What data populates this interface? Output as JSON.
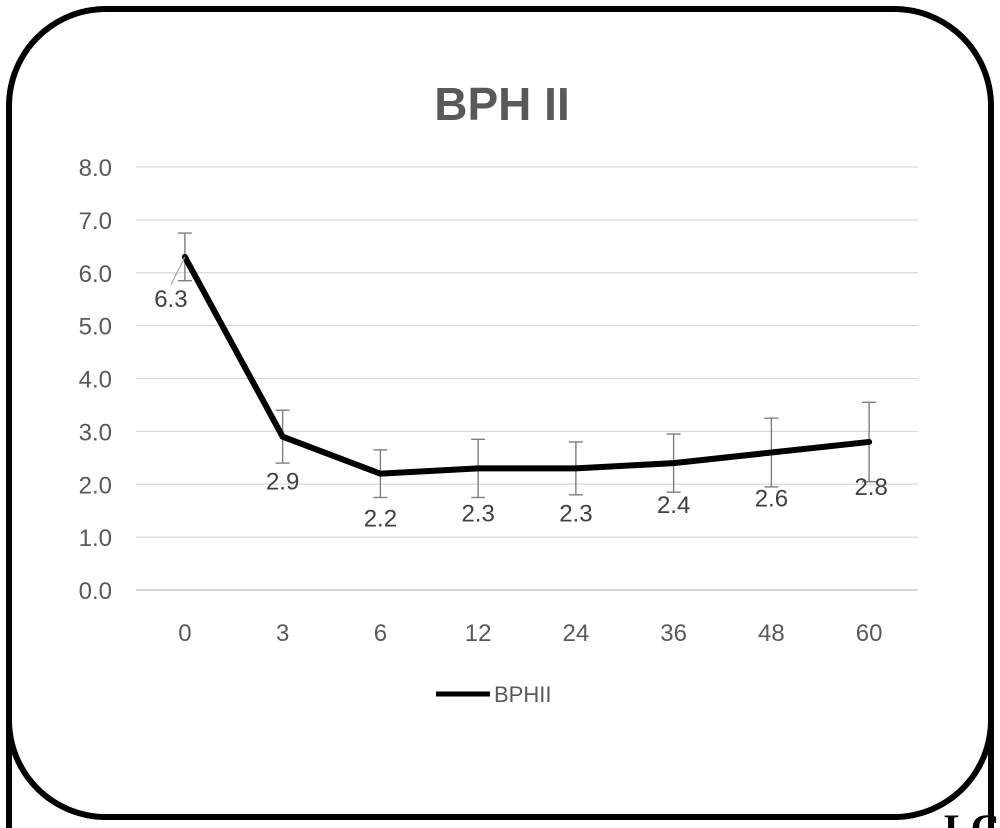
{
  "chart_data": {
    "type": "line",
    "title": "BPH II",
    "categories": [
      "0",
      "3",
      "6",
      "12",
      "24",
      "36",
      "48",
      "60"
    ],
    "y_ticks": [
      "0.0",
      "1.0",
      "2.0",
      "3.0",
      "4.0",
      "5.0",
      "6.0",
      "7.0",
      "8.0"
    ],
    "ylim": [
      0,
      8
    ],
    "grid": true,
    "legend_position": "bottom",
    "series": [
      {
        "name": "BPHII",
        "color": "#000000",
        "values": [
          6.3,
          2.9,
          2.2,
          2.3,
          2.3,
          2.4,
          2.6,
          2.8
        ],
        "labels": [
          "6.3",
          "2.9",
          "2.2",
          "2.3",
          "2.3",
          "2.4",
          "2.6",
          "2.8"
        ],
        "error_upper": [
          6.75,
          3.4,
          2.65,
          2.85,
          2.8,
          2.95,
          3.25,
          3.55
        ],
        "error_lower": [
          5.85,
          2.4,
          1.75,
          1.75,
          1.8,
          1.85,
          1.95,
          2.05
        ]
      }
    ]
  },
  "corner_text": "LC"
}
